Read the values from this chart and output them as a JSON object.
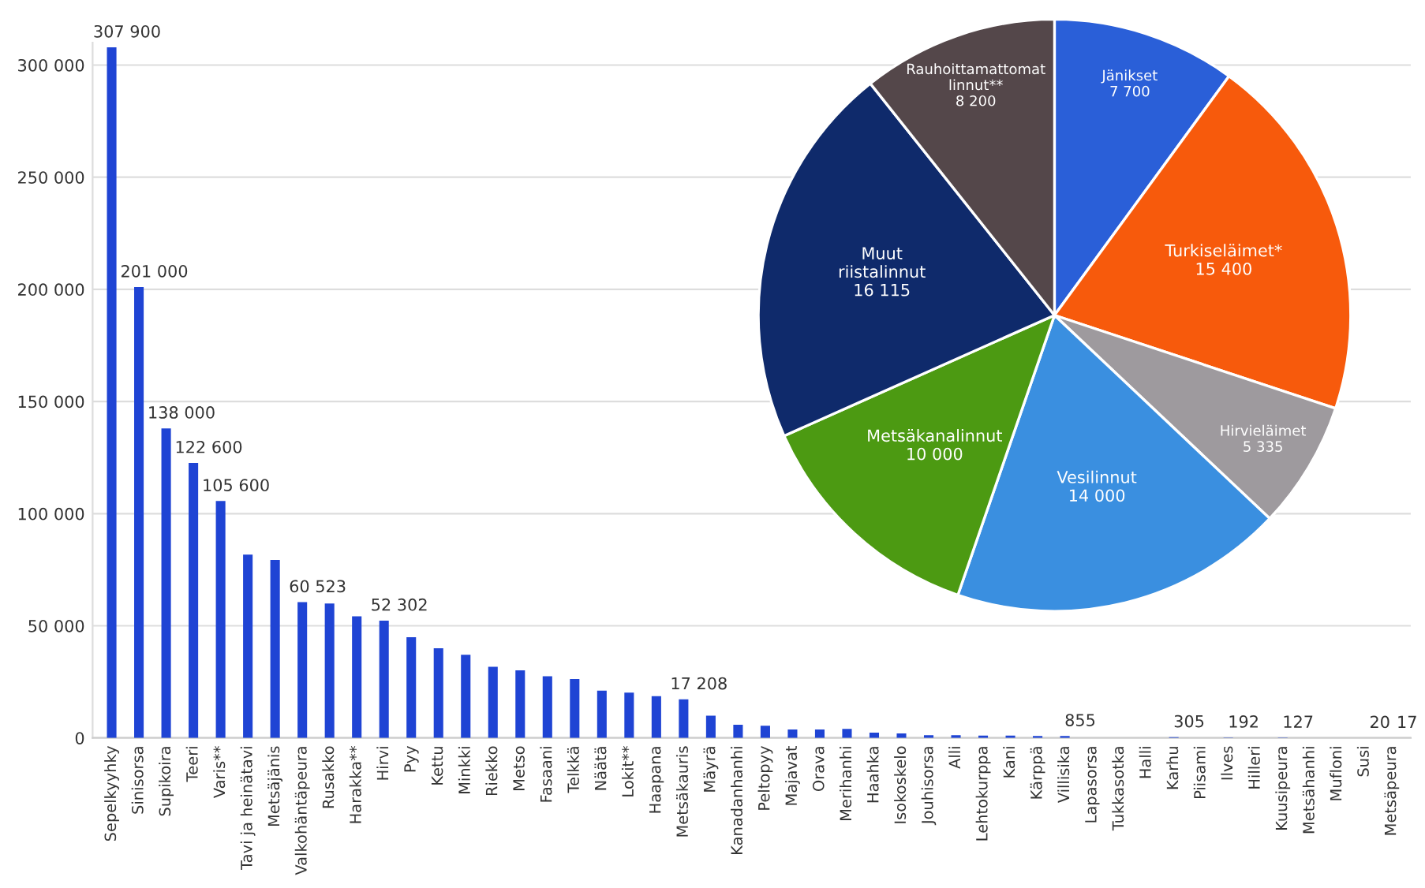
{
  "chart_data": [
    {
      "type": "bar",
      "categories": [
        "Sepelkyyhky",
        "Sinisorsa",
        "Supikoira",
        "Teeri",
        "Varis**",
        "Tavi ja heinätavi",
        "Metsäjänis",
        "Valkohäntäpeura",
        "Rusakko",
        "Harakka**",
        "Hirvi",
        "Pyy",
        "Kettu",
        "Minkki",
        "Riekko",
        "Metso",
        "Fasaani",
        "Telkkä",
        "Näätä",
        "Lokit**",
        "Haapana",
        "Metsäkauris",
        "Mäyrä",
        "Kanadanhanhi",
        "Peltopyy",
        "Majavat",
        "Orava",
        "Merihanhi",
        "Haahka",
        "Isokoskelo",
        "Jouhisorsa",
        "Alli",
        "Lehtokurppa",
        "Kani",
        "Kärppä",
        "Villisika",
        "Lapasorsa",
        "Tukkasotka",
        "Halli",
        "Karhu",
        "Piisami",
        "Ilves",
        "Hilleri",
        "Kuusipeura",
        "Metsähanhi",
        "Mufloni",
        "Susi",
        "Metsäpeura"
      ],
      "values": [
        307900,
        201000,
        138000,
        122600,
        105600,
        81700,
        79400,
        60523,
        59900,
        54200,
        52302,
        44900,
        40000,
        37100,
        31700,
        30100,
        27500,
        26300,
        21100,
        20200,
        18600,
        17208,
        9900,
        5900,
        5400,
        3800,
        3800,
        4000,
        2400,
        2000,
        1200,
        1200,
        1000,
        1000,
        900,
        855,
        null,
        null,
        null,
        305,
        null,
        192,
        null,
        127,
        null,
        null,
        20,
        17
      ],
      "value_labels": [
        "307 900",
        "201 000",
        "138 000",
        "122 600",
        "105 600",
        null,
        null,
        "60 523",
        null,
        null,
        "52 302",
        null,
        null,
        null,
        null,
        null,
        null,
        null,
        null,
        null,
        null,
        "17 208",
        null,
        null,
        null,
        null,
        null,
        null,
        null,
        null,
        null,
        null,
        null,
        null,
        null,
        "855",
        null,
        null,
        null,
        "305",
        null,
        "192",
        null,
        "127",
        null,
        null,
        "20",
        "17"
      ],
      "color": "#1f44d4",
      "ylim": [
        0,
        310000
      ],
      "yticks": [
        {
          "value": 0,
          "label": "0"
        },
        {
          "value": 50000,
          "label": "50 000"
        },
        {
          "value": 100000,
          "label": "100 000"
        },
        {
          "value": 150000,
          "label": "150 000"
        },
        {
          "value": 200000,
          "label": "200 000"
        },
        {
          "value": 250000,
          "label": "250 000"
        },
        {
          "value": 300000,
          "label": "300 000"
        }
      ],
      "grid": "y"
    },
    {
      "type": "pie",
      "categories": [
        "Jänikset",
        "Turkiseläimet*",
        "Hirvieläimet",
        "Vesilinnut",
        "Metsäkanalinnut",
        "Muut riistalinnut",
        "Rauhoittamattomat linnut**"
      ],
      "values": [
        7700,
        15400,
        5335,
        14000,
        10000,
        16115,
        8200
      ],
      "value_labels": [
        "7 700",
        "15 400",
        "5 335",
        "14 000",
        "10 000",
        "16 115",
        "8 200"
      ],
      "colors": [
        "#2a5fd8",
        "#f75a0c",
        "#9e9a9e",
        "#3a8fe0",
        "#4c9a12",
        "#0f2a6b",
        "#54474a"
      ]
    }
  ]
}
